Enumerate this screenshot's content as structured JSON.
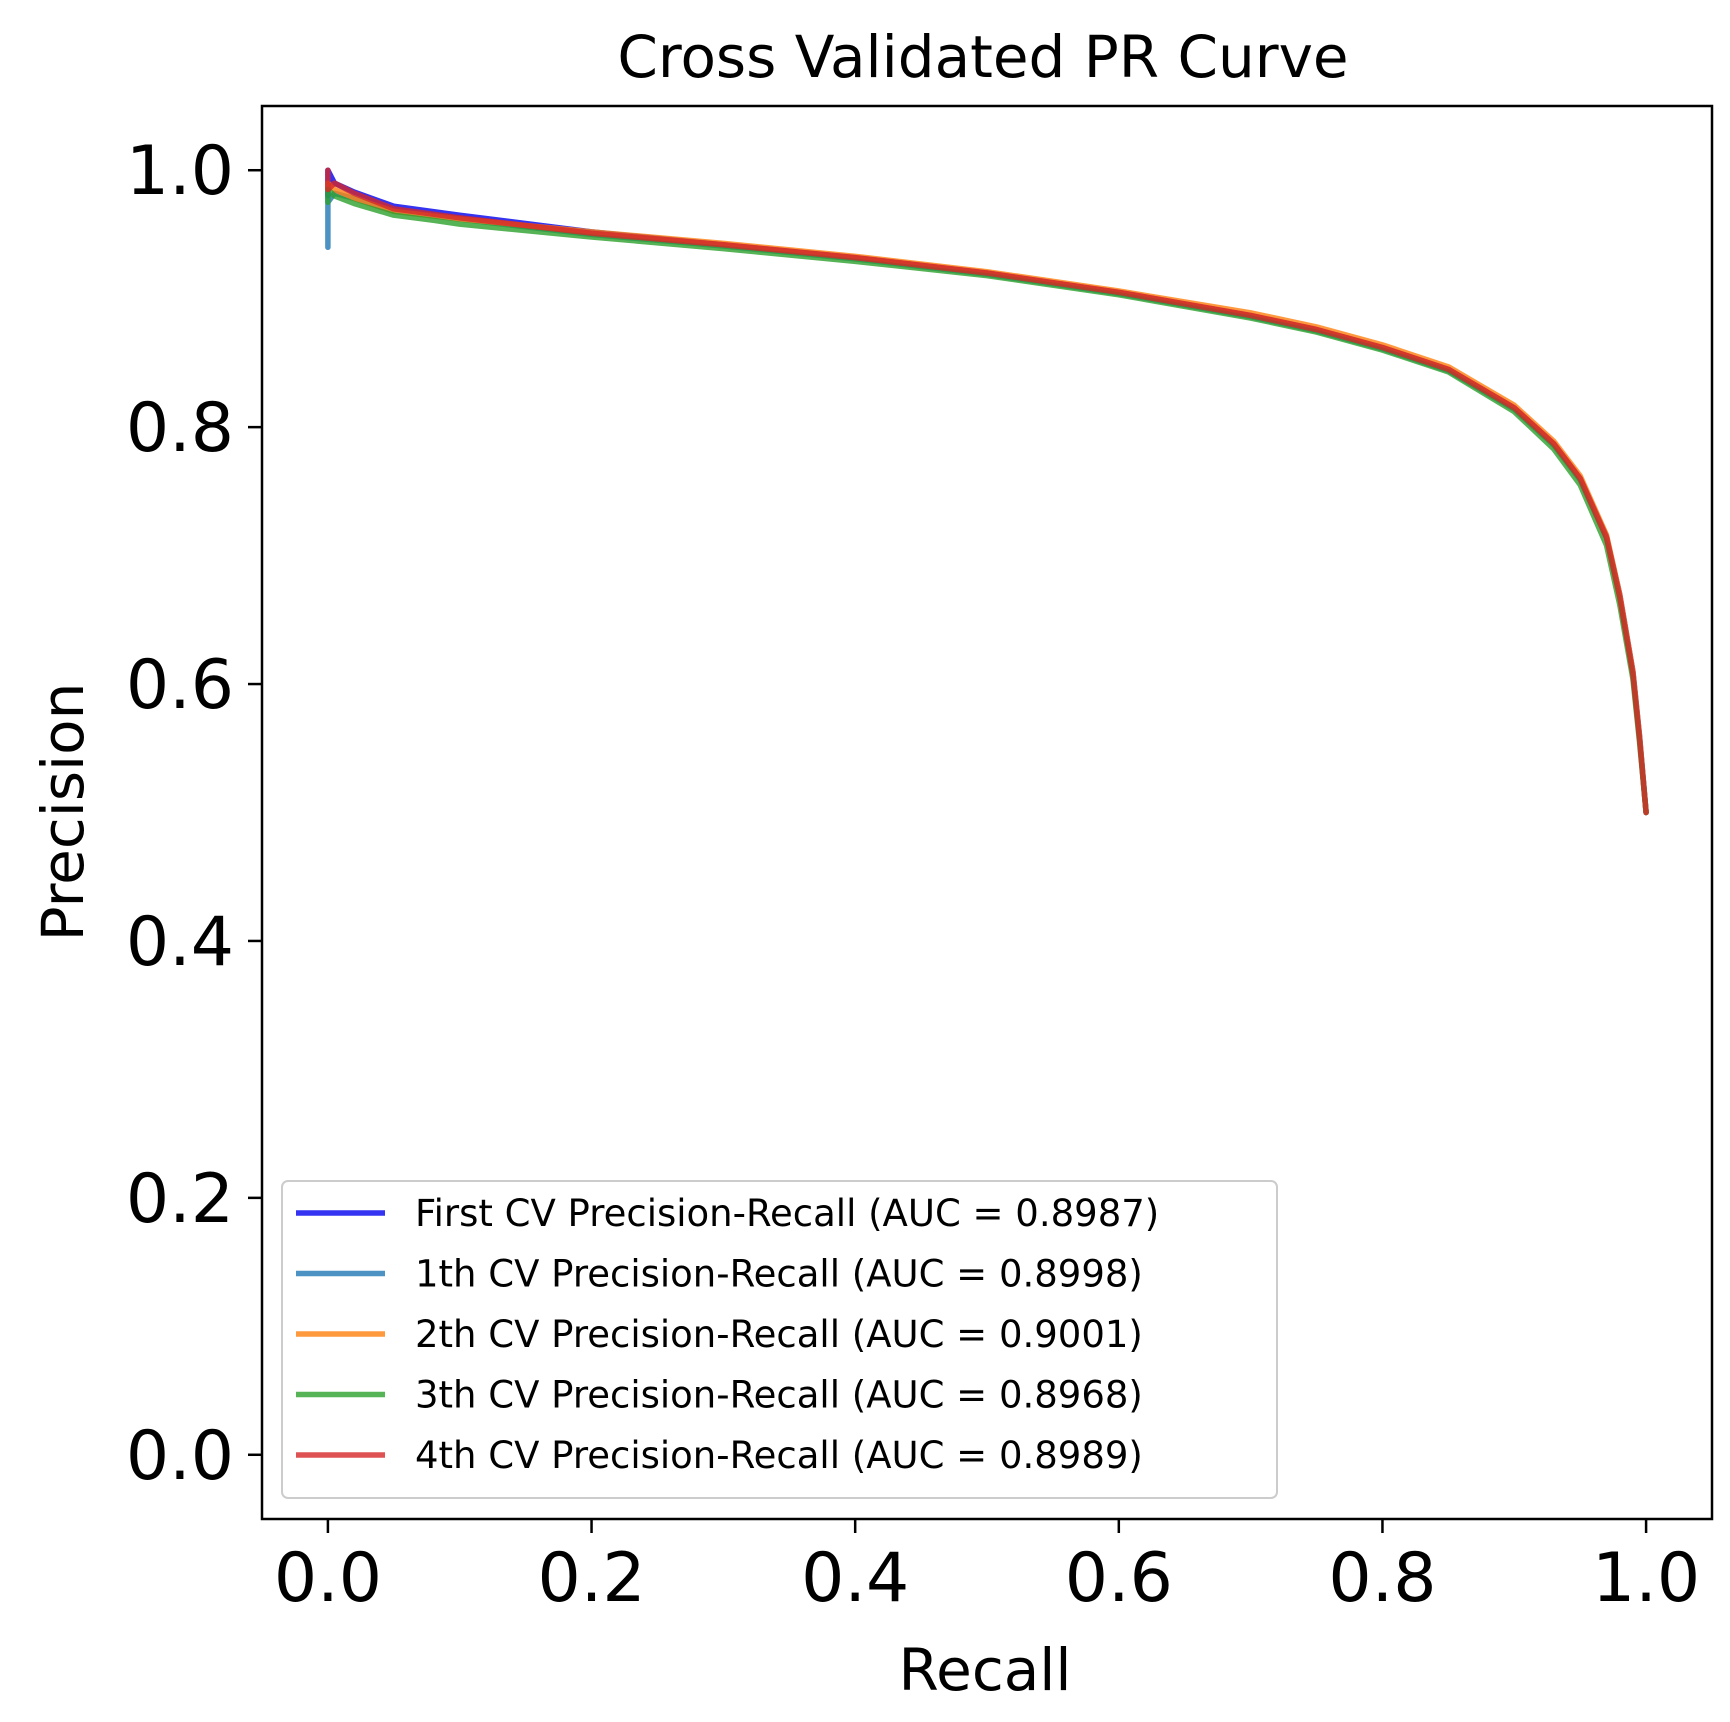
{
  "chart_data": {
    "type": "line",
    "title": "Cross Validated PR Curve",
    "xlabel": "Recall",
    "ylabel": "Precision",
    "xlim": [
      -0.05,
      1.05
    ],
    "ylim": [
      -0.05,
      1.05
    ],
    "xticks": [
      0.0,
      0.2,
      0.4,
      0.6,
      0.8,
      1.0
    ],
    "xtick_labels": [
      "0.0",
      "0.2",
      "0.4",
      "0.6",
      "0.8",
      "1.0"
    ],
    "yticks": [
      0.0,
      0.2,
      0.4,
      0.6,
      0.8,
      1.0
    ],
    "ytick_labels": [
      "0.0",
      "0.2",
      "0.4",
      "0.6",
      "0.8",
      "1.0"
    ],
    "grid": false,
    "legend_position": "lower-left",
    "series": [
      {
        "name": "First CV Precision-Recall (AUC = 0.8987)",
        "color": "#0000ee",
        "x": [
          0.0,
          0.0,
          0.005,
          0.02,
          0.05,
          0.1,
          0.2,
          0.3,
          0.4,
          0.5,
          0.6,
          0.7,
          0.75,
          0.8,
          0.85,
          0.9,
          0.93,
          0.95,
          0.97,
          0.98,
          0.99,
          0.995,
          1.0
        ],
        "y": [
          0.98,
          1.0,
          0.99,
          0.983,
          0.972,
          0.965,
          0.952,
          0.942,
          0.932,
          0.92,
          0.905,
          0.887,
          0.876,
          0.862,
          0.845,
          0.815,
          0.787,
          0.76,
          0.715,
          0.67,
          0.61,
          0.56,
          0.5
        ]
      },
      {
        "name": "1th CV Precision-Recall (AUC = 0.8998)",
        "color": "#1f77b4",
        "x": [
          0.0,
          0.0,
          0.0,
          0.005,
          0.02,
          0.05,
          0.1,
          0.2,
          0.3,
          0.4,
          0.5,
          0.6,
          0.7,
          0.75,
          0.8,
          0.85,
          0.9,
          0.93,
          0.95,
          0.97,
          0.98,
          0.99,
          0.995,
          1.0
        ],
        "y": [
          0.94,
          0.99,
          0.975,
          0.982,
          0.978,
          0.968,
          0.962,
          0.95,
          0.941,
          0.931,
          0.919,
          0.904,
          0.886,
          0.875,
          0.861,
          0.844,
          0.814,
          0.786,
          0.759,
          0.714,
          0.668,
          0.608,
          0.558,
          0.5
        ]
      },
      {
        "name": "2th CV Precision-Recall (AUC = 0.9001)",
        "color": "#ff7f0e",
        "x": [
          0.0,
          0.0,
          0.005,
          0.02,
          0.05,
          0.1,
          0.2,
          0.3,
          0.4,
          0.5,
          0.6,
          0.7,
          0.75,
          0.8,
          0.85,
          0.9,
          0.93,
          0.95,
          0.97,
          0.98,
          0.99,
          0.995,
          1.0
        ],
        "y": [
          0.985,
          0.99,
          0.985,
          0.978,
          0.968,
          0.962,
          0.952,
          0.943,
          0.933,
          0.921,
          0.906,
          0.889,
          0.878,
          0.864,
          0.847,
          0.817,
          0.789,
          0.762,
          0.716,
          0.67,
          0.61,
          0.56,
          0.5
        ]
      },
      {
        "name": "3th CV Precision-Recall (AUC = 0.8968)",
        "color": "#2ca02c",
        "x": [
          0.0,
          0.0,
          0.005,
          0.02,
          0.05,
          0.08,
          0.1,
          0.2,
          0.3,
          0.4,
          0.5,
          0.6,
          0.7,
          0.75,
          0.8,
          0.85,
          0.9,
          0.93,
          0.95,
          0.97,
          0.98,
          0.99,
          0.995,
          1.0
        ],
        "y": [
          0.975,
          0.985,
          0.98,
          0.974,
          0.965,
          0.961,
          0.958,
          0.948,
          0.939,
          0.929,
          0.918,
          0.903,
          0.885,
          0.874,
          0.86,
          0.843,
          0.812,
          0.783,
          0.755,
          0.708,
          0.662,
          0.604,
          0.555,
          0.5
        ]
      },
      {
        "name": "4th CV Precision-Recall (AUC = 0.8989)",
        "color": "#d62728",
        "x": [
          0.0,
          0.0,
          0.0,
          0.005,
          0.02,
          0.05,
          0.1,
          0.2,
          0.3,
          0.4,
          0.5,
          0.6,
          0.7,
          0.75,
          0.8,
          0.85,
          0.9,
          0.93,
          0.95,
          0.97,
          0.98,
          0.99,
          0.995,
          1.0
        ],
        "y": [
          0.99,
          1.0,
          0.985,
          0.99,
          0.982,
          0.97,
          0.963,
          0.951,
          0.942,
          0.932,
          0.92,
          0.905,
          0.887,
          0.876,
          0.862,
          0.845,
          0.815,
          0.787,
          0.76,
          0.714,
          0.668,
          0.608,
          0.558,
          0.5
        ]
      }
    ]
  }
}
